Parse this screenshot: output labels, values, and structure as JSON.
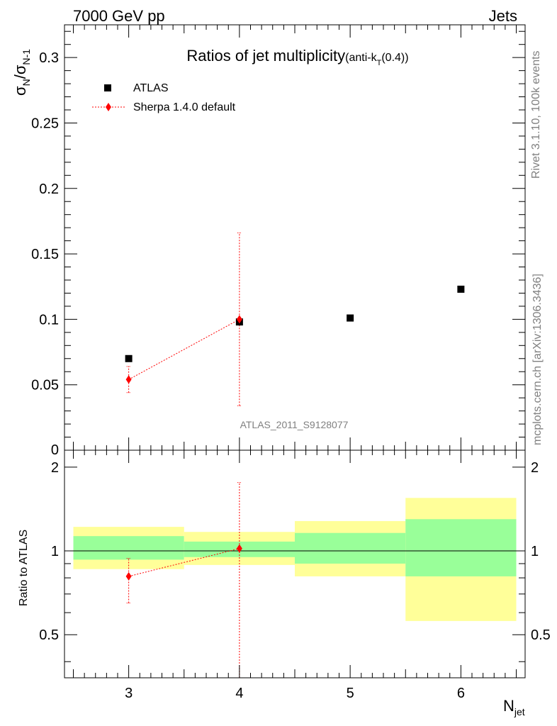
{
  "header": {
    "left": "7000 GeV pp",
    "right": "Jets"
  },
  "side_labels": {
    "rivet": "Rivet 3.1.10,  100k events",
    "mcplots": "mcplots.cern.ch [arXiv:1306.3436]"
  },
  "colors": {
    "mc": "#ff0000",
    "data": "#000000",
    "band_inner": "#99ff99",
    "band_outer": "#ffff99",
    "side_text": "#808080"
  },
  "chart_data": [
    {
      "type": "scatter",
      "title": "Ratios of jet multiplicity",
      "title_suffix": "(anti-k",
      "title_sub": "T",
      "title_end": "(0.4))",
      "ylabel_main": "σ",
      "ylabel_sub1": "N",
      "ylabel_sep": "/σ",
      "ylabel_sub2": "N-1",
      "watermark": "ATLAS_2011_S9128077",
      "xlim": [
        2.42,
        6.58
      ],
      "ylim": [
        0,
        0.325
      ],
      "yticks": [
        0.05,
        0.1,
        0.15,
        0.2,
        0.25,
        0.3
      ],
      "ytick_labels": [
        "0.05",
        "0.1",
        "0.15",
        "0.2",
        "0.25",
        "0.3"
      ],
      "y_zero_label": "0",
      "legend": [
        "ATLAS",
        "Sherpa 1.4.0 default"
      ],
      "series": [
        {
          "name": "ATLAS",
          "x": [
            3,
            4,
            5,
            6
          ],
          "y": [
            0.07,
            0.098,
            0.101,
            0.123
          ]
        },
        {
          "name": "Sherpa 1.4.0 default",
          "x": [
            3,
            4
          ],
          "y": [
            0.054,
            0.1
          ],
          "err_low": [
            0.044,
            0.034
          ],
          "err_high": [
            0.064,
            0.166
          ]
        }
      ]
    },
    {
      "type": "scatter",
      "ylabel": "Ratio to ATLAS",
      "xlabel": "N",
      "xlabel_sub": "jet",
      "xlim": [
        2.42,
        6.58
      ],
      "ylim": [
        0.35,
        2.3
      ],
      "yticks": [
        0.5,
        1,
        2
      ],
      "ytick_labels": [
        "0.5",
        "1",
        "2"
      ],
      "xticks": [
        3,
        4,
        5,
        6
      ],
      "xtick_labels": [
        "3",
        "4",
        "5",
        "6"
      ],
      "bands": [
        {
          "x0": 2.5,
          "x1": 3.5,
          "inner": [
            0.93,
            1.13
          ],
          "outer": [
            0.86,
            1.22
          ]
        },
        {
          "x0": 3.5,
          "x1": 4.5,
          "inner": [
            0.95,
            1.08
          ],
          "outer": [
            0.89,
            1.17
          ]
        },
        {
          "x0": 4.5,
          "x1": 5.5,
          "inner": [
            0.9,
            1.16
          ],
          "outer": [
            0.81,
            1.28
          ]
        },
        {
          "x0": 5.5,
          "x1": 6.5,
          "inner": [
            0.81,
            1.3
          ],
          "outer": [
            0.56,
            1.55
          ]
        }
      ],
      "series": [
        {
          "name": "Sherpa 1.4.0 default",
          "x": [
            3,
            4
          ],
          "y": [
            0.81,
            1.02
          ],
          "err_low": [
            0.65,
            0.35
          ],
          "err_high": [
            0.94,
            1.76
          ]
        }
      ]
    }
  ]
}
